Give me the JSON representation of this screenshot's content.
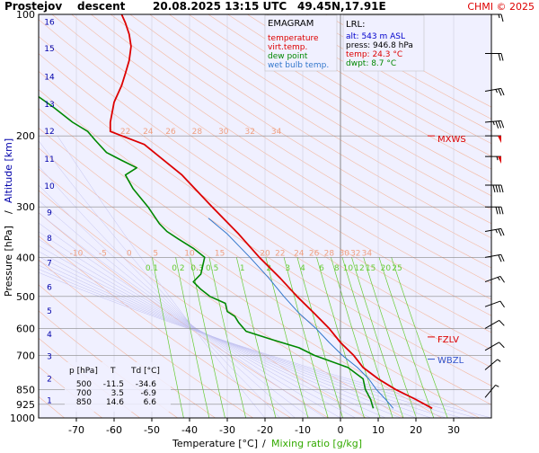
{
  "header": {
    "station": "Prostejov",
    "sounding": "descent",
    "datetime": "20.08.2025 13:15 UTC",
    "coords": "49.45N,17.91E",
    "credit": "CHMI © 2025"
  },
  "legend": {
    "title": "EMAGRAM",
    "items": [
      {
        "label": "temperature",
        "color": "#dd0000"
      },
      {
        "label": "virt.temp.",
        "color": "#dd0000"
      },
      {
        "label": "dew point",
        "color": "#008800"
      },
      {
        "label": "wet bulb temp.",
        "color": "#3377cc"
      }
    ]
  },
  "lrl": {
    "title": "LRL:",
    "alt": "alt: 543 m ASL",
    "press": "press: 946.8 hPa",
    "temp": "temp: 24.3 °C",
    "dwpt": "dwpt: 8.7 °C"
  },
  "levels_table": {
    "headers": [
      "p [hPa]",
      "T",
      "Td [°C]"
    ],
    "rows": [
      [
        "500",
        "-11.5",
        "-34.6"
      ],
      [
        "700",
        "3.5",
        "-6.9"
      ],
      [
        "850",
        "14.6",
        "6.6"
      ]
    ]
  },
  "markers": [
    {
      "label": "MXWS",
      "p": 200,
      "color": "#dd0000"
    },
    {
      "label": "FZLV",
      "p": 630,
      "color": "#dd0000"
    },
    {
      "label": "WBZL",
      "p": 715,
      "color": "#3355cc"
    }
  ],
  "colors": {
    "background": "#f0f0ff",
    "isobar": "#888888",
    "dry_adiabat": "#f4b8a0",
    "moist_adiabat": "#c0c0f0",
    "mixing_ratio": "#66cc33",
    "temperature": "#dd0000",
    "dew_point": "#008800",
    "wet_bulb": "#3377cc",
    "altitude_text": "#0000aa",
    "wind": "#000000"
  },
  "chart_data": {
    "type": "line",
    "diagram": "emagram",
    "xlabel": "Temperature [°C]",
    "xlabel_sep": "/",
    "xlabel2": "Mixing ratio [g/kg]",
    "ylabel": "Pressure [hPa]",
    "ylabel_sep": "/",
    "ylabel2": "Altitude [km]",
    "xlim": [
      -80,
      40
    ],
    "ylim": [
      1000,
      100
    ],
    "y_scale": "log",
    "pressure_ticks": [
      100,
      200,
      300,
      400,
      500,
      600,
      700,
      850,
      925,
      1000
    ],
    "temperature_ticks": [
      -70,
      -60,
      -50,
      -40,
      -30,
      -20,
      -10,
      0,
      10,
      20,
      30
    ],
    "altitude_km_labels": [
      {
        "km": 1,
        "p": 900
      },
      {
        "km": 2,
        "p": 795
      },
      {
        "km": 3,
        "p": 701
      },
      {
        "km": 4,
        "p": 617
      },
      {
        "km": 5,
        "p": 541
      },
      {
        "km": 6,
        "p": 472
      },
      {
        "km": 7,
        "p": 411
      },
      {
        "km": 8,
        "p": 357
      },
      {
        "km": 9,
        "p": 308
      },
      {
        "km": 10,
        "p": 265
      },
      {
        "km": 11,
        "p": 227
      },
      {
        "km": 12,
        "p": 194
      },
      {
        "km": 13,
        "p": 166
      },
      {
        "km": 14,
        "p": 142
      },
      {
        "km": 15,
        "p": 121
      },
      {
        "km": 16,
        "p": 104
      }
    ],
    "theta_labels": [
      {
        "label": "-10",
        "t": -70,
        "p": 400
      },
      {
        "label": "-5",
        "t": -63,
        "p": 400
      },
      {
        "label": "0",
        "t": -56,
        "p": 400
      },
      {
        "label": "5",
        "t": -49,
        "p": 400
      },
      {
        "label": "10",
        "t": -40,
        "p": 400
      },
      {
        "label": "15",
        "t": -32,
        "p": 400
      },
      {
        "label": "20",
        "t": -20,
        "p": 400
      },
      {
        "label": "22",
        "t": -16,
        "p": 400
      },
      {
        "label": "24",
        "t": -11,
        "p": 400
      },
      {
        "label": "26",
        "t": -7,
        "p": 400
      },
      {
        "label": "28",
        "t": -3,
        "p": 400
      },
      {
        "label": "30",
        "t": 1,
        "p": 400
      },
      {
        "label": "32",
        "t": 4,
        "p": 400
      },
      {
        "label": "34",
        "t": 7,
        "p": 400
      },
      {
        "label": "22",
        "t": -57,
        "p": 200
      },
      {
        "label": "24",
        "t": -51,
        "p": 200
      },
      {
        "label": "26",
        "t": -45,
        "p": 200
      },
      {
        "label": "28",
        "t": -38,
        "p": 200
      },
      {
        "label": "30",
        "t": -31,
        "p": 200
      },
      {
        "label": "32",
        "t": -24,
        "p": 200
      },
      {
        "label": "34",
        "t": -17,
        "p": 200
      }
    ],
    "mixing_ratio_labels": [
      {
        "label": "0.1",
        "t": -50,
        "p": 425
      },
      {
        "label": "0.2",
        "t": -43,
        "p": 425
      },
      {
        "label": "0.3",
        "t": -38,
        "p": 425
      },
      {
        "label": "0.5",
        "t": -34,
        "p": 425
      },
      {
        "label": "1",
        "t": -26,
        "p": 425
      },
      {
        "label": "2",
        "t": -19,
        "p": 425
      },
      {
        "label": "3",
        "t": -14,
        "p": 425
      },
      {
        "label": "4",
        "t": -10,
        "p": 425
      },
      {
        "label": "6",
        "t": -5,
        "p": 425
      },
      {
        "label": "8",
        "t": -1,
        "p": 425
      },
      {
        "label": "10",
        "t": 2,
        "p": 425
      },
      {
        "label": "12",
        "t": 5,
        "p": 425
      },
      {
        "label": "15",
        "t": 8,
        "p": 425
      },
      {
        "label": "20",
        "t": 12,
        "p": 425
      },
      {
        "label": "25",
        "t": 15,
        "p": 425
      }
    ],
    "series": [
      {
        "name": "temperature",
        "points": [
          [
            24.3,
            946.8
          ],
          [
            20.0,
            900
          ],
          [
            14.6,
            850
          ],
          [
            10.0,
            800
          ],
          [
            6.0,
            750
          ],
          [
            3.5,
            700
          ],
          [
            0.0,
            650
          ],
          [
            -3.0,
            600
          ],
          [
            -7.0,
            550
          ],
          [
            -11.5,
            500
          ],
          [
            -16.0,
            450
          ],
          [
            -21.5,
            400
          ],
          [
            -27.0,
            350
          ],
          [
            -34.0,
            300
          ],
          [
            -42.0,
            250
          ],
          [
            -52.0,
            210
          ],
          [
            -61.0,
            195
          ],
          [
            -61.0,
            185
          ],
          [
            -60.0,
            165
          ],
          [
            -58.0,
            150
          ],
          [
            -57.0,
            140
          ],
          [
            -56.0,
            130
          ],
          [
            -55.5,
            120
          ],
          [
            -56.0,
            112
          ],
          [
            -57.0,
            105
          ],
          [
            -58.0,
            100
          ]
        ]
      },
      {
        "name": "dew point",
        "points": [
          [
            8.7,
            946.8
          ],
          [
            8.0,
            900
          ],
          [
            6.6,
            850
          ],
          [
            6.0,
            800
          ],
          [
            2.0,
            750
          ],
          [
            -6.9,
            700
          ],
          [
            -11.0,
            670
          ],
          [
            -18.0,
            640
          ],
          [
            -25.0,
            610
          ],
          [
            -27.0,
            580
          ],
          [
            -28.0,
            560
          ],
          [
            -30.0,
            545
          ],
          [
            -30.5,
            520
          ],
          [
            -34.6,
            500
          ],
          [
            -37.0,
            480
          ],
          [
            -39.0,
            460
          ],
          [
            -37.0,
            440
          ],
          [
            -36.0,
            400
          ],
          [
            -39.0,
            380
          ],
          [
            -41.0,
            370
          ],
          [
            -43.0,
            360
          ],
          [
            -46.0,
            345
          ],
          [
            -48.0,
            330
          ],
          [
            -51.0,
            300
          ],
          [
            -55.0,
            270
          ],
          [
            -57.0,
            250
          ],
          [
            -54.0,
            240
          ],
          [
            -58.0,
            230
          ],
          [
            -62.0,
            220
          ],
          [
            -65.0,
            205
          ],
          [
            -67.0,
            195
          ],
          [
            -71.0,
            185
          ],
          [
            -76.0,
            170
          ],
          [
            -80.0,
            160
          ]
        ]
      },
      {
        "name": "wet bulb temp.",
        "points": [
          [
            14.0,
            946.8
          ],
          [
            12.0,
            900
          ],
          [
            9.5,
            850
          ],
          [
            7.5,
            800
          ],
          [
            4.5,
            750
          ],
          [
            0.5,
            700
          ],
          [
            -3.0,
            650
          ],
          [
            -6.5,
            600
          ],
          [
            -11.0,
            550
          ],
          [
            -15.0,
            500
          ],
          [
            -19.0,
            450
          ],
          [
            -24.0,
            400
          ],
          [
            -30.0,
            350
          ],
          [
            -35.0,
            320
          ]
        ]
      }
    ],
    "wind": [
      {
        "p": 100,
        "dir": 270,
        "spd": 15
      },
      {
        "p": 125,
        "dir": 270,
        "spd": 20
      },
      {
        "p": 155,
        "dir": 260,
        "spd": 25
      },
      {
        "p": 185,
        "dir": 265,
        "spd": 35
      },
      {
        "p": 200,
        "dir": 270,
        "spd": 50
      },
      {
        "p": 225,
        "dir": 270,
        "spd": 55
      },
      {
        "p": 265,
        "dir": 270,
        "spd": 40
      },
      {
        "p": 300,
        "dir": 270,
        "spd": 30
      },
      {
        "p": 345,
        "dir": 260,
        "spd": 25
      },
      {
        "p": 400,
        "dir": 260,
        "spd": 20
      },
      {
        "p": 460,
        "dir": 250,
        "spd": 15
      },
      {
        "p": 530,
        "dir": 250,
        "spd": 10
      },
      {
        "p": 600,
        "dir": 240,
        "spd": 10
      },
      {
        "p": 680,
        "dir": 240,
        "spd": 10
      },
      {
        "p": 760,
        "dir": 230,
        "spd": 5
      },
      {
        "p": 890,
        "dir": 220,
        "spd": 5
      }
    ]
  }
}
